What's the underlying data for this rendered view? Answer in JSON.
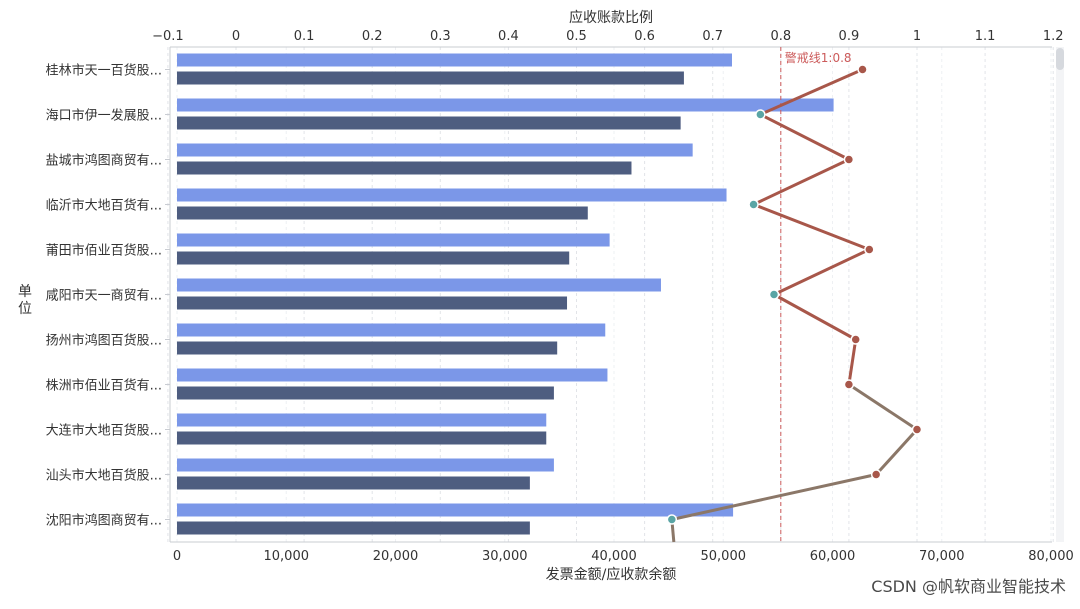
{
  "chart_data": {
    "type": "bar",
    "orientation": "horizontal",
    "title": "",
    "categories": [
      "桂林市天一百货股...",
      "海口市伊一发展股...",
      "盐城市鸿图商贸有...",
      "临沂市大地百货有...",
      "莆田市佰业百货股...",
      "咸阳市天一商贸有...",
      "扬州市鸿图百货股...",
      "株洲市佰业百货有...",
      "大连市大地百货股...",
      "汕头市大地百货股...",
      "沈阳市鸿图商贸有..."
    ],
    "series": [
      {
        "name": "发票金额",
        "type": "bar",
        "axis": "bottom",
        "color": "#7b97e8",
        "values": [
          50800,
          60100,
          47200,
          50300,
          39600,
          44300,
          39200,
          39400,
          33800,
          34500,
          50900
        ]
      },
      {
        "name": "应收款余额",
        "type": "bar",
        "axis": "bottom",
        "color": "#4e5d80",
        "values": [
          46400,
          46100,
          41600,
          37600,
          35900,
          35700,
          34800,
          34500,
          33800,
          32300,
          32300
        ]
      },
      {
        "name": "应收账款比例",
        "type": "line",
        "axis": "top",
        "values": [
          0.92,
          0.77,
          0.9,
          0.76,
          0.93,
          0.79,
          0.91,
          0.9,
          1.0,
          0.94,
          0.64
        ]
      }
    ],
    "ylabel": "单位",
    "xlabel_bottom": "发票金额/应收款余额",
    "xlabel_top": "应收账款比例",
    "x_bottom_ticks": [
      "0",
      "10,000",
      "20,000",
      "30,000",
      "40,000",
      "50,000",
      "60,000",
      "70,000",
      "80,000"
    ],
    "x_top_ticks": [
      "−0.1",
      "0",
      "0.1",
      "0.2",
      "0.3",
      "0.4",
      "0.5",
      "0.6",
      "0.7",
      "0.8",
      "0.9",
      "1",
      "1.1",
      "1.2"
    ],
    "xlim_bottom": [
      0,
      80000
    ],
    "xlim_top": [
      -0.1,
      1.2
    ],
    "reference_line": {
      "value": 0.8,
      "label": "警戒线1:0.8",
      "color": "#cc5b5b"
    },
    "grid": true,
    "colors": {
      "above_line": "#a8574a",
      "below_line_marker": "#5aa5a5",
      "lower_segment": "#8b7768"
    }
  },
  "watermark": "CSDN @帆软商业智能技术"
}
